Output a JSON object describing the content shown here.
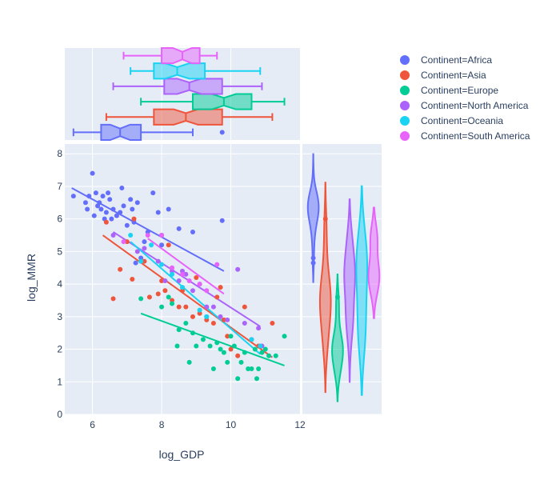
{
  "chart_data": {
    "type": "scatter",
    "xlabel": "log_GDP",
    "ylabel": "log_MMR",
    "xlim": [
      5.2,
      12.0
    ],
    "ylim": [
      0,
      8.3
    ],
    "x_ticks": [
      6,
      8,
      10,
      12
    ],
    "y_ticks": [
      0,
      1,
      2,
      3,
      4,
      5,
      6,
      7,
      8
    ],
    "grid": true,
    "legend_placement": "top-right",
    "marginal_x": "box",
    "marginal_y": "violin",
    "trendline": "ols",
    "series": [
      {
        "name": "Continent=Africa",
        "color": "#636efa",
        "points": [
          [
            5.45,
            6.7
          ],
          [
            5.8,
            6.5
          ],
          [
            5.85,
            6.3
          ],
          [
            5.9,
            6.7
          ],
          [
            6.0,
            7.4
          ],
          [
            6.05,
            6.1
          ],
          [
            6.1,
            6.8
          ],
          [
            6.15,
            6.4
          ],
          [
            6.2,
            6.5
          ],
          [
            6.25,
            6.3
          ],
          [
            6.3,
            6.7
          ],
          [
            6.35,
            6.0
          ],
          [
            6.4,
            6.2
          ],
          [
            6.45,
            6.8
          ],
          [
            6.5,
            6.6
          ],
          [
            6.55,
            6.0
          ],
          [
            6.6,
            6.3
          ],
          [
            6.7,
            6.1
          ],
          [
            6.8,
            6.2
          ],
          [
            6.85,
            6.95
          ],
          [
            6.9,
            6.4
          ],
          [
            7.0,
            5.8
          ],
          [
            7.1,
            6.6
          ],
          [
            7.15,
            6.3
          ],
          [
            7.2,
            5.9
          ],
          [
            7.3,
            6.5
          ],
          [
            7.5,
            5.3
          ],
          [
            7.6,
            5.6
          ],
          [
            7.75,
            6.8
          ],
          [
            7.9,
            6.2
          ],
          [
            8.0,
            5.2
          ],
          [
            8.2,
            6.3
          ],
          [
            8.5,
            5.7
          ],
          [
            8.9,
            5.6
          ],
          [
            9.75,
            5.95
          ],
          [
            7.25,
            4.65
          ],
          [
            7.4,
            4.8
          ]
        ],
        "trend": [
          [
            5.4,
            6.95
          ],
          [
            9.8,
            4.4
          ]
        ]
      },
      {
        "name": "Continent=Asia",
        "color": "#ef553b",
        "points": [
          [
            6.4,
            5.9
          ],
          [
            6.6,
            3.55
          ],
          [
            6.8,
            4.45
          ],
          [
            7.0,
            5.3
          ],
          [
            7.15,
            4.15
          ],
          [
            7.2,
            6.0
          ],
          [
            7.5,
            4.7
          ],
          [
            7.65,
            3.6
          ],
          [
            7.9,
            3.7
          ],
          [
            8.0,
            4.1
          ],
          [
            8.1,
            3.8
          ],
          [
            8.2,
            5.2
          ],
          [
            8.3,
            3.5
          ],
          [
            8.5,
            3.3
          ],
          [
            8.7,
            3.3
          ],
          [
            8.9,
            3.0
          ],
          [
            9.1,
            3.1
          ],
          [
            9.3,
            2.9
          ],
          [
            9.5,
            2.8
          ],
          [
            9.6,
            3.6
          ],
          [
            9.7,
            3.9
          ],
          [
            9.8,
            2.9
          ],
          [
            9.9,
            2.4
          ],
          [
            10.0,
            2.0
          ],
          [
            10.2,
            1.8
          ],
          [
            10.4,
            3.3
          ],
          [
            10.6,
            2.3
          ],
          [
            10.8,
            2.1
          ],
          [
            11.2,
            2.8
          ],
          [
            8.6,
            3.8
          ],
          [
            9.0,
            4.2
          ]
        ],
        "trend": [
          [
            6.3,
            5.5
          ],
          [
            11.2,
            1.75
          ]
        ]
      },
      {
        "name": "Continent=Europe",
        "color": "#00cc96",
        "points": [
          [
            7.4,
            3.55
          ],
          [
            8.0,
            3.3
          ],
          [
            8.3,
            3.4
          ],
          [
            8.45,
            2.1
          ],
          [
            8.5,
            2.6
          ],
          [
            8.7,
            2.8
          ],
          [
            8.8,
            1.6
          ],
          [
            8.9,
            2.5
          ],
          [
            9.0,
            2.1
          ],
          [
            9.2,
            2.3
          ],
          [
            9.4,
            2.1
          ],
          [
            9.5,
            1.4
          ],
          [
            9.6,
            2.2
          ],
          [
            9.7,
            2.0
          ],
          [
            9.8,
            1.9
          ],
          [
            9.9,
            1.6
          ],
          [
            10.0,
            2.4
          ],
          [
            10.1,
            2.1
          ],
          [
            10.2,
            1.1
          ],
          [
            10.3,
            1.6
          ],
          [
            10.4,
            1.9
          ],
          [
            10.5,
            1.4
          ],
          [
            10.6,
            1.4
          ],
          [
            10.7,
            2.0
          ],
          [
            10.75,
            1.1
          ],
          [
            10.8,
            1.4
          ],
          [
            10.9,
            1.9
          ],
          [
            11.0,
            2.0
          ],
          [
            11.1,
            1.8
          ],
          [
            11.3,
            1.8
          ],
          [
            11.55,
            2.4
          ],
          [
            9.3,
            3.0
          ],
          [
            8.2,
            3.6
          ]
        ],
        "trend": [
          [
            7.4,
            3.1
          ],
          [
            11.55,
            1.5
          ]
        ]
      },
      {
        "name": "Continent=North America",
        "color": "#ab63fa",
        "points": [
          [
            6.6,
            5.5
          ],
          [
            7.3,
            5.0
          ],
          [
            7.5,
            5.1
          ],
          [
            7.9,
            4.7
          ],
          [
            8.1,
            4.1
          ],
          [
            8.3,
            4.4
          ],
          [
            8.5,
            4.1
          ],
          [
            8.6,
            4.4
          ],
          [
            8.7,
            4.3
          ],
          [
            8.9,
            3.8
          ],
          [
            9.1,
            4.0
          ],
          [
            9.3,
            3.3
          ],
          [
            9.5,
            3.3
          ],
          [
            9.7,
            3.0
          ],
          [
            9.9,
            2.9
          ],
          [
            10.2,
            4.45
          ],
          [
            10.4,
            2.8
          ],
          [
            10.8,
            2.65
          ],
          [
            10.9,
            2.1
          ],
          [
            8.0,
            5.5
          ]
        ],
        "trend": [
          [
            6.6,
            5.6
          ],
          [
            10.85,
            2.7
          ]
        ]
      },
      {
        "name": "Continent=Oceania",
        "color": "#19d3f3",
        "points": [
          [
            7.1,
            5.5
          ],
          [
            7.4,
            4.7
          ],
          [
            7.7,
            5.2
          ],
          [
            8.0,
            4.6
          ],
          [
            8.3,
            4.3
          ],
          [
            8.6,
            3.9
          ],
          [
            9.1,
            3.2
          ],
          [
            9.3,
            3.0
          ],
          [
            10.6,
            2.3
          ],
          [
            10.85,
            2.1
          ]
        ],
        "trend": [
          [
            7.1,
            5.3
          ],
          [
            10.85,
            1.85
          ]
        ]
      },
      {
        "name": "Continent=South America",
        "color": "#e763fa",
        "points": [
          [
            6.9,
            5.3
          ],
          [
            7.6,
            5.5
          ],
          [
            8.0,
            5.5
          ],
          [
            8.3,
            4.5
          ],
          [
            8.6,
            4.3
          ],
          [
            8.8,
            4.1
          ],
          [
            9.1,
            4.0
          ],
          [
            9.3,
            3.8
          ],
          [
            9.6,
            4.6
          ]
        ],
        "trend": [
          [
            7.6,
            5.4
          ],
          [
            9.8,
            3.7
          ]
        ]
      }
    ]
  }
}
